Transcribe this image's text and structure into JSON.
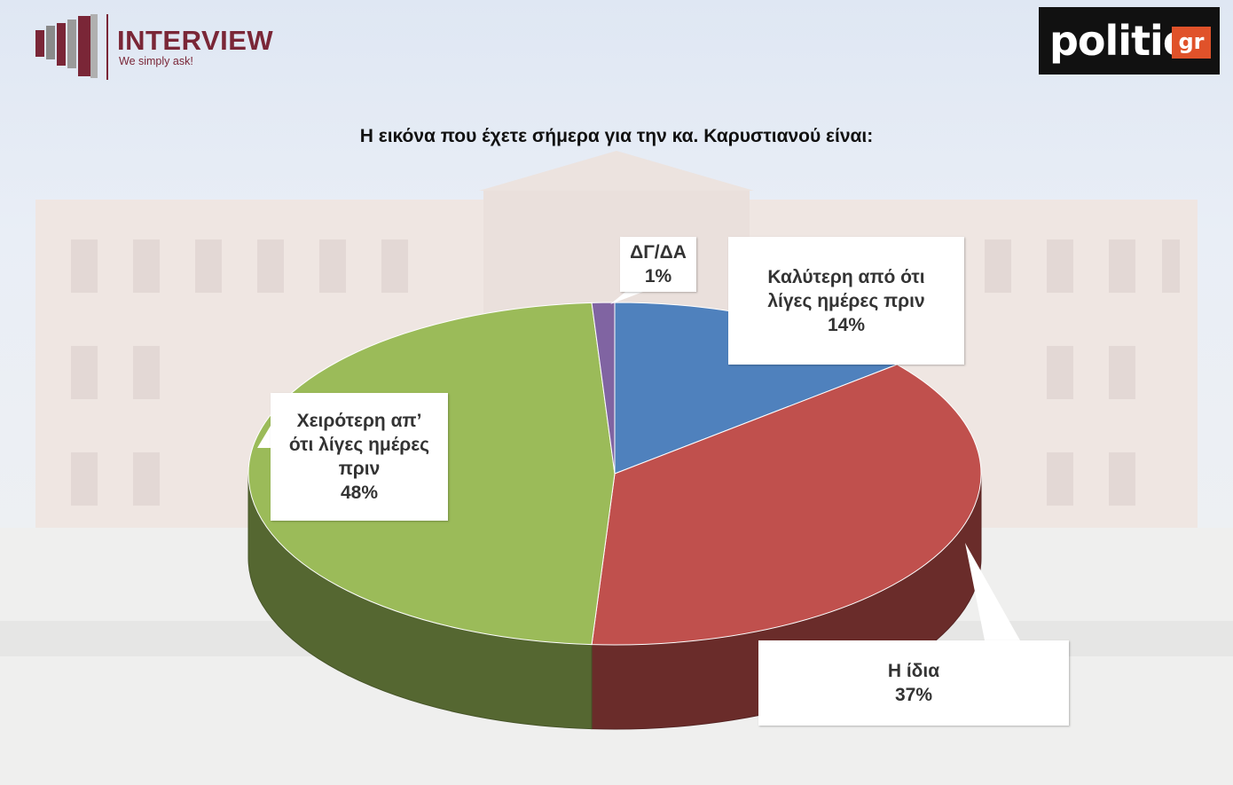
{
  "header": {
    "interview_logo_word": "INTERVIEW",
    "interview_logo_tagline": "We simply ask!",
    "politic_logo_word": "politic",
    "politic_logo_suffix": "gr"
  },
  "colors": {
    "brand_interview": "#7a2637",
    "politic_bg": "#111111",
    "politic_accent": "#e0522a"
  },
  "chart_data": {
    "type": "pie",
    "title": "Η εικόνα που έχετε σήμερα για την κα. Καρυστιανού είναι:",
    "three_d": true,
    "slices": [
      {
        "label": "Καλύτερη από ότι λίγες ημέρες πριν",
        "value": 14,
        "value_label": "14%",
        "color": "#4f81bd"
      },
      {
        "label": "Η ίδια",
        "value": 37,
        "value_label": "37%",
        "color": "#c0504d"
      },
      {
        "label": "Χειρότερη απ’ ότι λίγες ημέρες πριν",
        "value": 48,
        "value_label": "48%",
        "color": "#9bbb59"
      },
      {
        "label": "ΔΓ/ΔΑ",
        "value": 1,
        "value_label": "1%",
        "color": "#8064a2"
      }
    ]
  },
  "labels": {
    "better_label": "Καλύτερη από ότι\nλίγες ημέρες πριν",
    "same_label": "Η ίδια",
    "worse_label": "Χειρότερη απ’\nότι λίγες ημέρες\nπριν",
    "dk_label": "ΔΓ/ΔΑ"
  }
}
